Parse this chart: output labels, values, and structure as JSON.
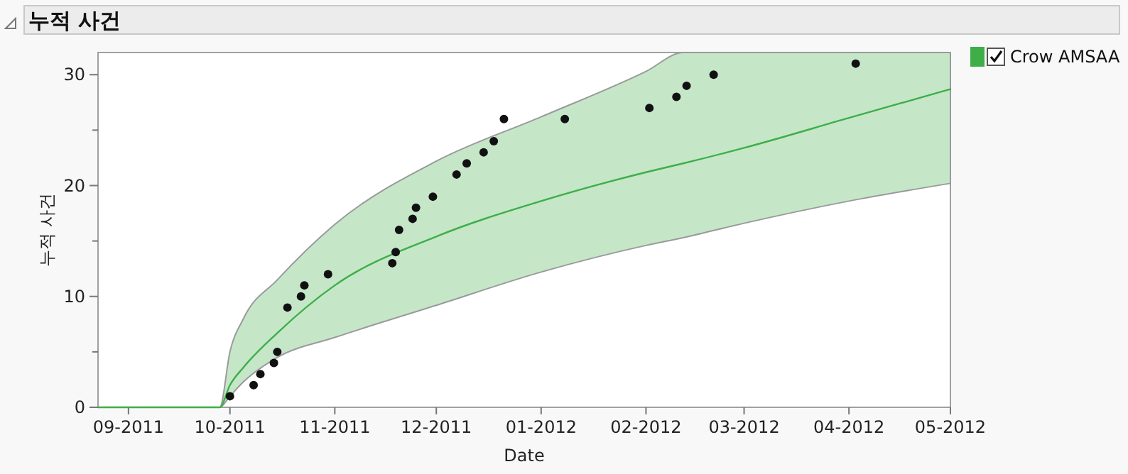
{
  "chart_data": {
    "type": "scatter",
    "title": "누적 사건",
    "xlabel": "Date",
    "ylabel": "누적 사건",
    "legend": "right",
    "grid": false,
    "xlim": [
      "2011-08-23",
      "2012-05-01"
    ],
    "xticks": [
      {
        "value": "2011-09-01",
        "label": "09-2011"
      },
      {
        "value": "2011-10-01",
        "label": "10-2011"
      },
      {
        "value": "2011-11-01",
        "label": "11-2011"
      },
      {
        "value": "2011-12-01",
        "label": "12-2011"
      },
      {
        "value": "2012-01-01",
        "label": "01-2012"
      },
      {
        "value": "2012-02-01",
        "label": "02-2012"
      },
      {
        "value": "2012-03-01",
        "label": "03-2012"
      },
      {
        "value": "2012-04-01",
        "label": "04-2012"
      },
      {
        "value": "2012-05-01",
        "label": "05-2012"
      }
    ],
    "ylim": [
      0,
      32
    ],
    "yticks": [
      0,
      {
        "value": 5,
        "label": null
      },
      10,
      {
        "value": 15,
        "label": null
      },
      20,
      {
        "value": 25,
        "label": null
      },
      30
    ],
    "series": [
      {
        "name": "Crow AMSAA",
        "type": "line",
        "color": "#3fae49",
        "line_style": "solid",
        "x": [
          "2011-08-23",
          "2011-09-28",
          "2011-10-01",
          "2011-10-05",
          "2011-10-15",
          "2011-11-01",
          "2011-12-01",
          "2012-01-01",
          "2012-02-01",
          "2012-02-12",
          "2012-03-01",
          "2012-04-01",
          "2012-05-01"
        ],
        "values": [
          0,
          0,
          2.0,
          3.6,
          6.7,
          11.0,
          15.4,
          18.6,
          21.2,
          22.0,
          23.4,
          26.1,
          28.7
        ],
        "upper": [
          0,
          0,
          5,
          8,
          11.5,
          16.5,
          22.2,
          26.2,
          30.3,
          32,
          32,
          32,
          32
        ],
        "lower": [
          0,
          0,
          1,
          2.3,
          4.5,
          6.3,
          9.2,
          12.2,
          14.6,
          15.3,
          16.6,
          18.6,
          20.2
        ]
      },
      {
        "color": "#111111",
        "marker": "circle",
        "x": [
          "2011-10-01",
          "2011-10-08",
          "2011-10-10",
          "2011-10-14",
          "2011-10-15",
          "2011-10-18",
          "2011-10-22",
          "2011-10-23",
          "2011-10-30",
          "2011-11-18",
          "2011-11-19",
          "2011-11-20",
          "2011-11-24",
          "2011-11-25",
          "2011-11-30",
          "2011-12-07",
          "2011-12-10",
          "2011-12-15",
          "2011-12-18",
          "2011-12-21",
          "2012-01-08",
          "2012-02-02",
          "2012-02-10",
          "2012-02-13",
          "2012-02-21",
          "2012-04-03"
        ],
        "values": [
          1,
          2,
          3,
          4,
          5,
          9,
          10,
          11,
          12,
          13,
          14,
          16,
          17,
          18,
          19,
          21,
          22,
          23,
          24,
          26,
          26,
          27,
          28,
          29,
          30,
          31
        ]
      }
    ]
  }
}
